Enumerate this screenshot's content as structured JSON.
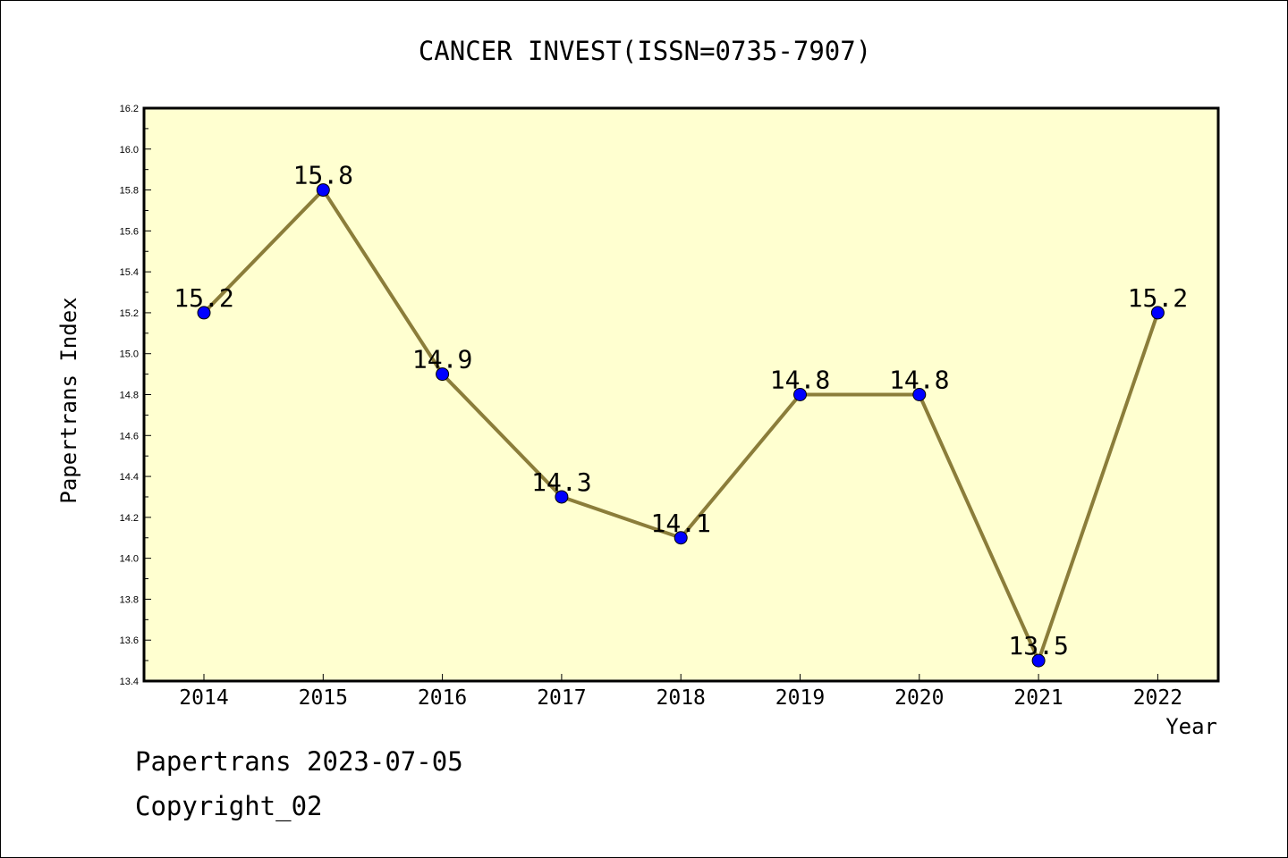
{
  "chart_data": {
    "type": "line",
    "title": "CANCER INVEST(ISSN=0735-7907)",
    "xlabel": "Year",
    "ylabel": "Papertrans Index",
    "categories": [
      "2014",
      "2015",
      "2016",
      "2017",
      "2018",
      "2019",
      "2020",
      "2021",
      "2022"
    ],
    "series": [
      {
        "values": [
          15.2,
          15.8,
          14.9,
          14.3,
          14.1,
          14.8,
          14.8,
          13.5,
          15.2
        ],
        "data_labels": [
          "15.2",
          "15.8",
          "14.9",
          "14.3",
          "14.1",
          "14.8",
          "14.8",
          "13.5",
          "15.2"
        ]
      }
    ],
    "ylim": [
      13.4,
      16.2
    ],
    "yticks": [
      "13.4",
      "13.6",
      "13.8",
      "14.0",
      "14.2",
      "14.4",
      "14.6",
      "14.8",
      "15.0",
      "15.2",
      "15.4",
      "15.6",
      "15.8",
      "16.0",
      "16.2"
    ],
    "grid": false,
    "colors": {
      "plot_background": "#ffffd0",
      "line": "#8b7d3a",
      "marker": "#0000ff"
    }
  },
  "footer": {
    "line1": "Papertrans 2023-07-05",
    "line2": "Copyright_02"
  }
}
